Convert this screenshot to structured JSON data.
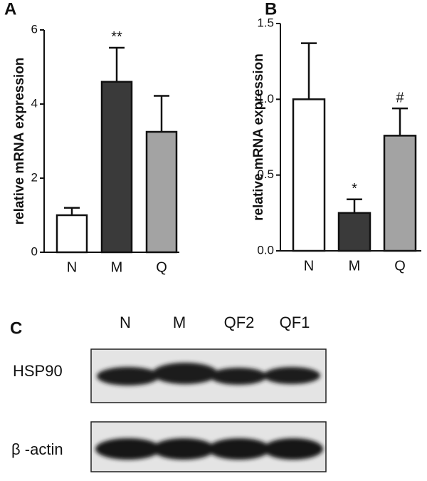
{
  "chart_data": [
    {
      "type": "bar",
      "panel_label": "A",
      "y_label": "relative mRNA expression",
      "categories": [
        "N",
        "M",
        "Q"
      ],
      "values": [
        1.0,
        4.6,
        3.25
      ],
      "errors": [
        0.2,
        0.92,
        0.97
      ],
      "colors": [
        "#ffffff",
        "#3a3a3a",
        "#a3a3a3"
      ],
      "annotations": [
        null,
        "**",
        null
      ],
      "ylim": [
        0,
        6
      ],
      "yticks": [
        0,
        2,
        4,
        6
      ]
    },
    {
      "type": "bar",
      "panel_label": "B",
      "y_label": "relative mRNA expression",
      "categories": [
        "N",
        "M",
        "Q"
      ],
      "values": [
        1.0,
        0.25,
        0.76
      ],
      "errors": [
        0.37,
        0.09,
        0.18
      ],
      "colors": [
        "#ffffff",
        "#3a3a3a",
        "#a3a3a3"
      ],
      "annotations": [
        null,
        "*",
        "#"
      ],
      "ylim": [
        0,
        1.5
      ],
      "yticks": [
        {
          "value": 0,
          "label": "0.0"
        },
        0.5,
        {
          "value": 1,
          "label": "1.0"
        },
        1.5
      ]
    }
  ],
  "blot": {
    "panel_label": "C",
    "lanes": [
      "N",
      "M",
      "QF2",
      "QF1"
    ],
    "rows": [
      "HSP90",
      "β -actin"
    ]
  }
}
